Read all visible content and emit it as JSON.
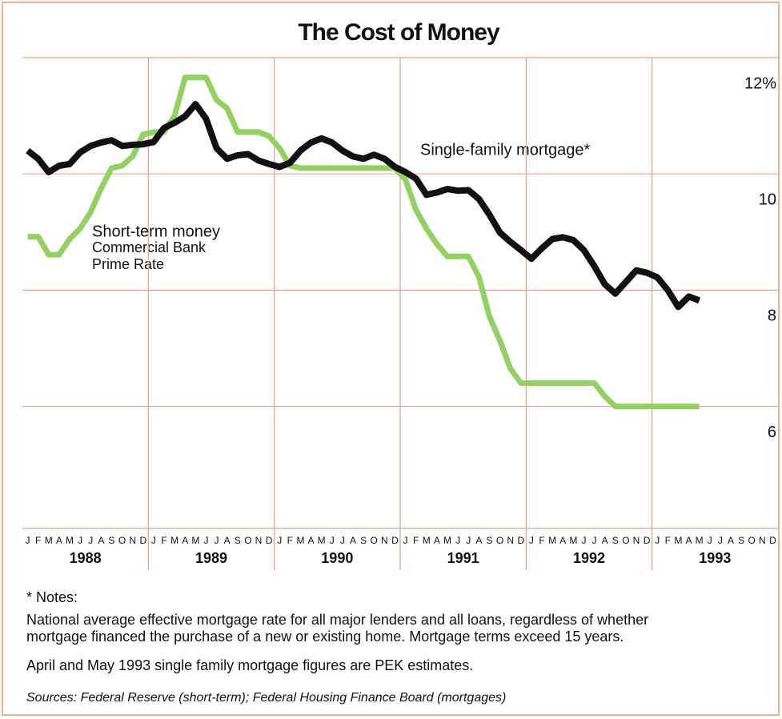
{
  "chart_data": {
    "type": "line",
    "title": "The Cost of Money",
    "categories": [
      "J",
      "F",
      "M",
      "A",
      "M",
      "J",
      "J",
      "A",
      "S",
      "O",
      "N",
      "D",
      "J",
      "F",
      "M",
      "A",
      "M",
      "J",
      "J",
      "A",
      "S",
      "O",
      "N",
      "D",
      "J",
      "F",
      "M",
      "A",
      "M",
      "J",
      "J",
      "A",
      "S",
      "O",
      "N",
      "D",
      "J",
      "F",
      "M",
      "A",
      "M",
      "J",
      "J",
      "A",
      "S",
      "O",
      "N",
      "D",
      "J",
      "F",
      "M",
      "A",
      "M",
      "J",
      "J",
      "A",
      "S",
      "O",
      "N",
      "D",
      "J",
      "F",
      "M",
      "A",
      "M",
      "J",
      "J",
      "A",
      "S",
      "O",
      "N",
      "D"
    ],
    "years": [
      "1988",
      "1989",
      "1990",
      "1991",
      "1992",
      "1993"
    ],
    "series": [
      {
        "name": "Short-term money",
        "name_lines": [
          "Commercial Bank",
          "Prime Rate"
        ],
        "color": "#93d163",
        "values": [
          8.92,
          8.92,
          8.61,
          8.61,
          8.88,
          9.06,
          9.34,
          9.75,
          10.1,
          10.14,
          10.3,
          10.68,
          10.72,
          10.72,
          11.0,
          11.66,
          11.66,
          11.66,
          11.27,
          11.13,
          10.72,
          10.72,
          10.72,
          10.65,
          10.44,
          10.14,
          10.1,
          10.1,
          10.1,
          10.1,
          10.1,
          10.1,
          10.1,
          10.1,
          10.1,
          10.1,
          9.9,
          9.38,
          9.06,
          8.79,
          8.58,
          8.58,
          8.58,
          8.23,
          7.55,
          7.13,
          6.65,
          6.4,
          6.4,
          6.4,
          6.4,
          6.4,
          6.4,
          6.4,
          6.4,
          6.17,
          6.0,
          6.0,
          6.0,
          6.0,
          6.0,
          6.0,
          6.0,
          6.0,
          6.0,
          null,
          null,
          null,
          null,
          null,
          null,
          null
        ]
      },
      {
        "name": "Single-family mortgage*",
        "color": "#111111",
        "values": [
          10.4,
          10.26,
          10.03,
          10.14,
          10.17,
          10.37,
          10.48,
          10.54,
          10.58,
          10.48,
          10.5,
          10.51,
          10.55,
          10.79,
          10.88,
          10.99,
          11.2,
          10.95,
          10.44,
          10.26,
          10.32,
          10.34,
          10.23,
          10.17,
          10.12,
          10.19,
          10.4,
          10.54,
          10.61,
          10.54,
          10.4,
          10.3,
          10.26,
          10.33,
          10.26,
          10.12,
          10.03,
          9.92,
          9.64,
          9.68,
          9.74,
          9.71,
          9.72,
          9.57,
          9.3,
          8.99,
          8.83,
          8.69,
          8.54,
          8.72,
          8.88,
          8.91,
          8.86,
          8.69,
          8.41,
          8.1,
          7.94,
          8.14,
          8.34,
          8.3,
          8.22,
          8.0,
          7.71,
          7.89,
          7.82,
          null,
          null,
          null,
          null,
          null,
          null,
          null
        ]
      }
    ],
    "ylim": [
      3.9,
      12
    ],
    "yticks": [
      6,
      8,
      10,
      {
        "value": 12,
        "label": "12%"
      }
    ],
    "grid": true,
    "notes": {
      "heading": "* Notes:",
      "lines": [
        "National average effective mortgage rate for all major lenders and all loans, regardless of whether",
        "mortgage financed the purchase of a new or existing home.  Mortgage terms exceed 15 years."
      ],
      "estimate": "April and May 1993 single family mortgage figures are PEK estimates.",
      "sources": "Sources: Federal Reserve (short-term); Federal Housing Finance Board (mortgages)"
    }
  }
}
